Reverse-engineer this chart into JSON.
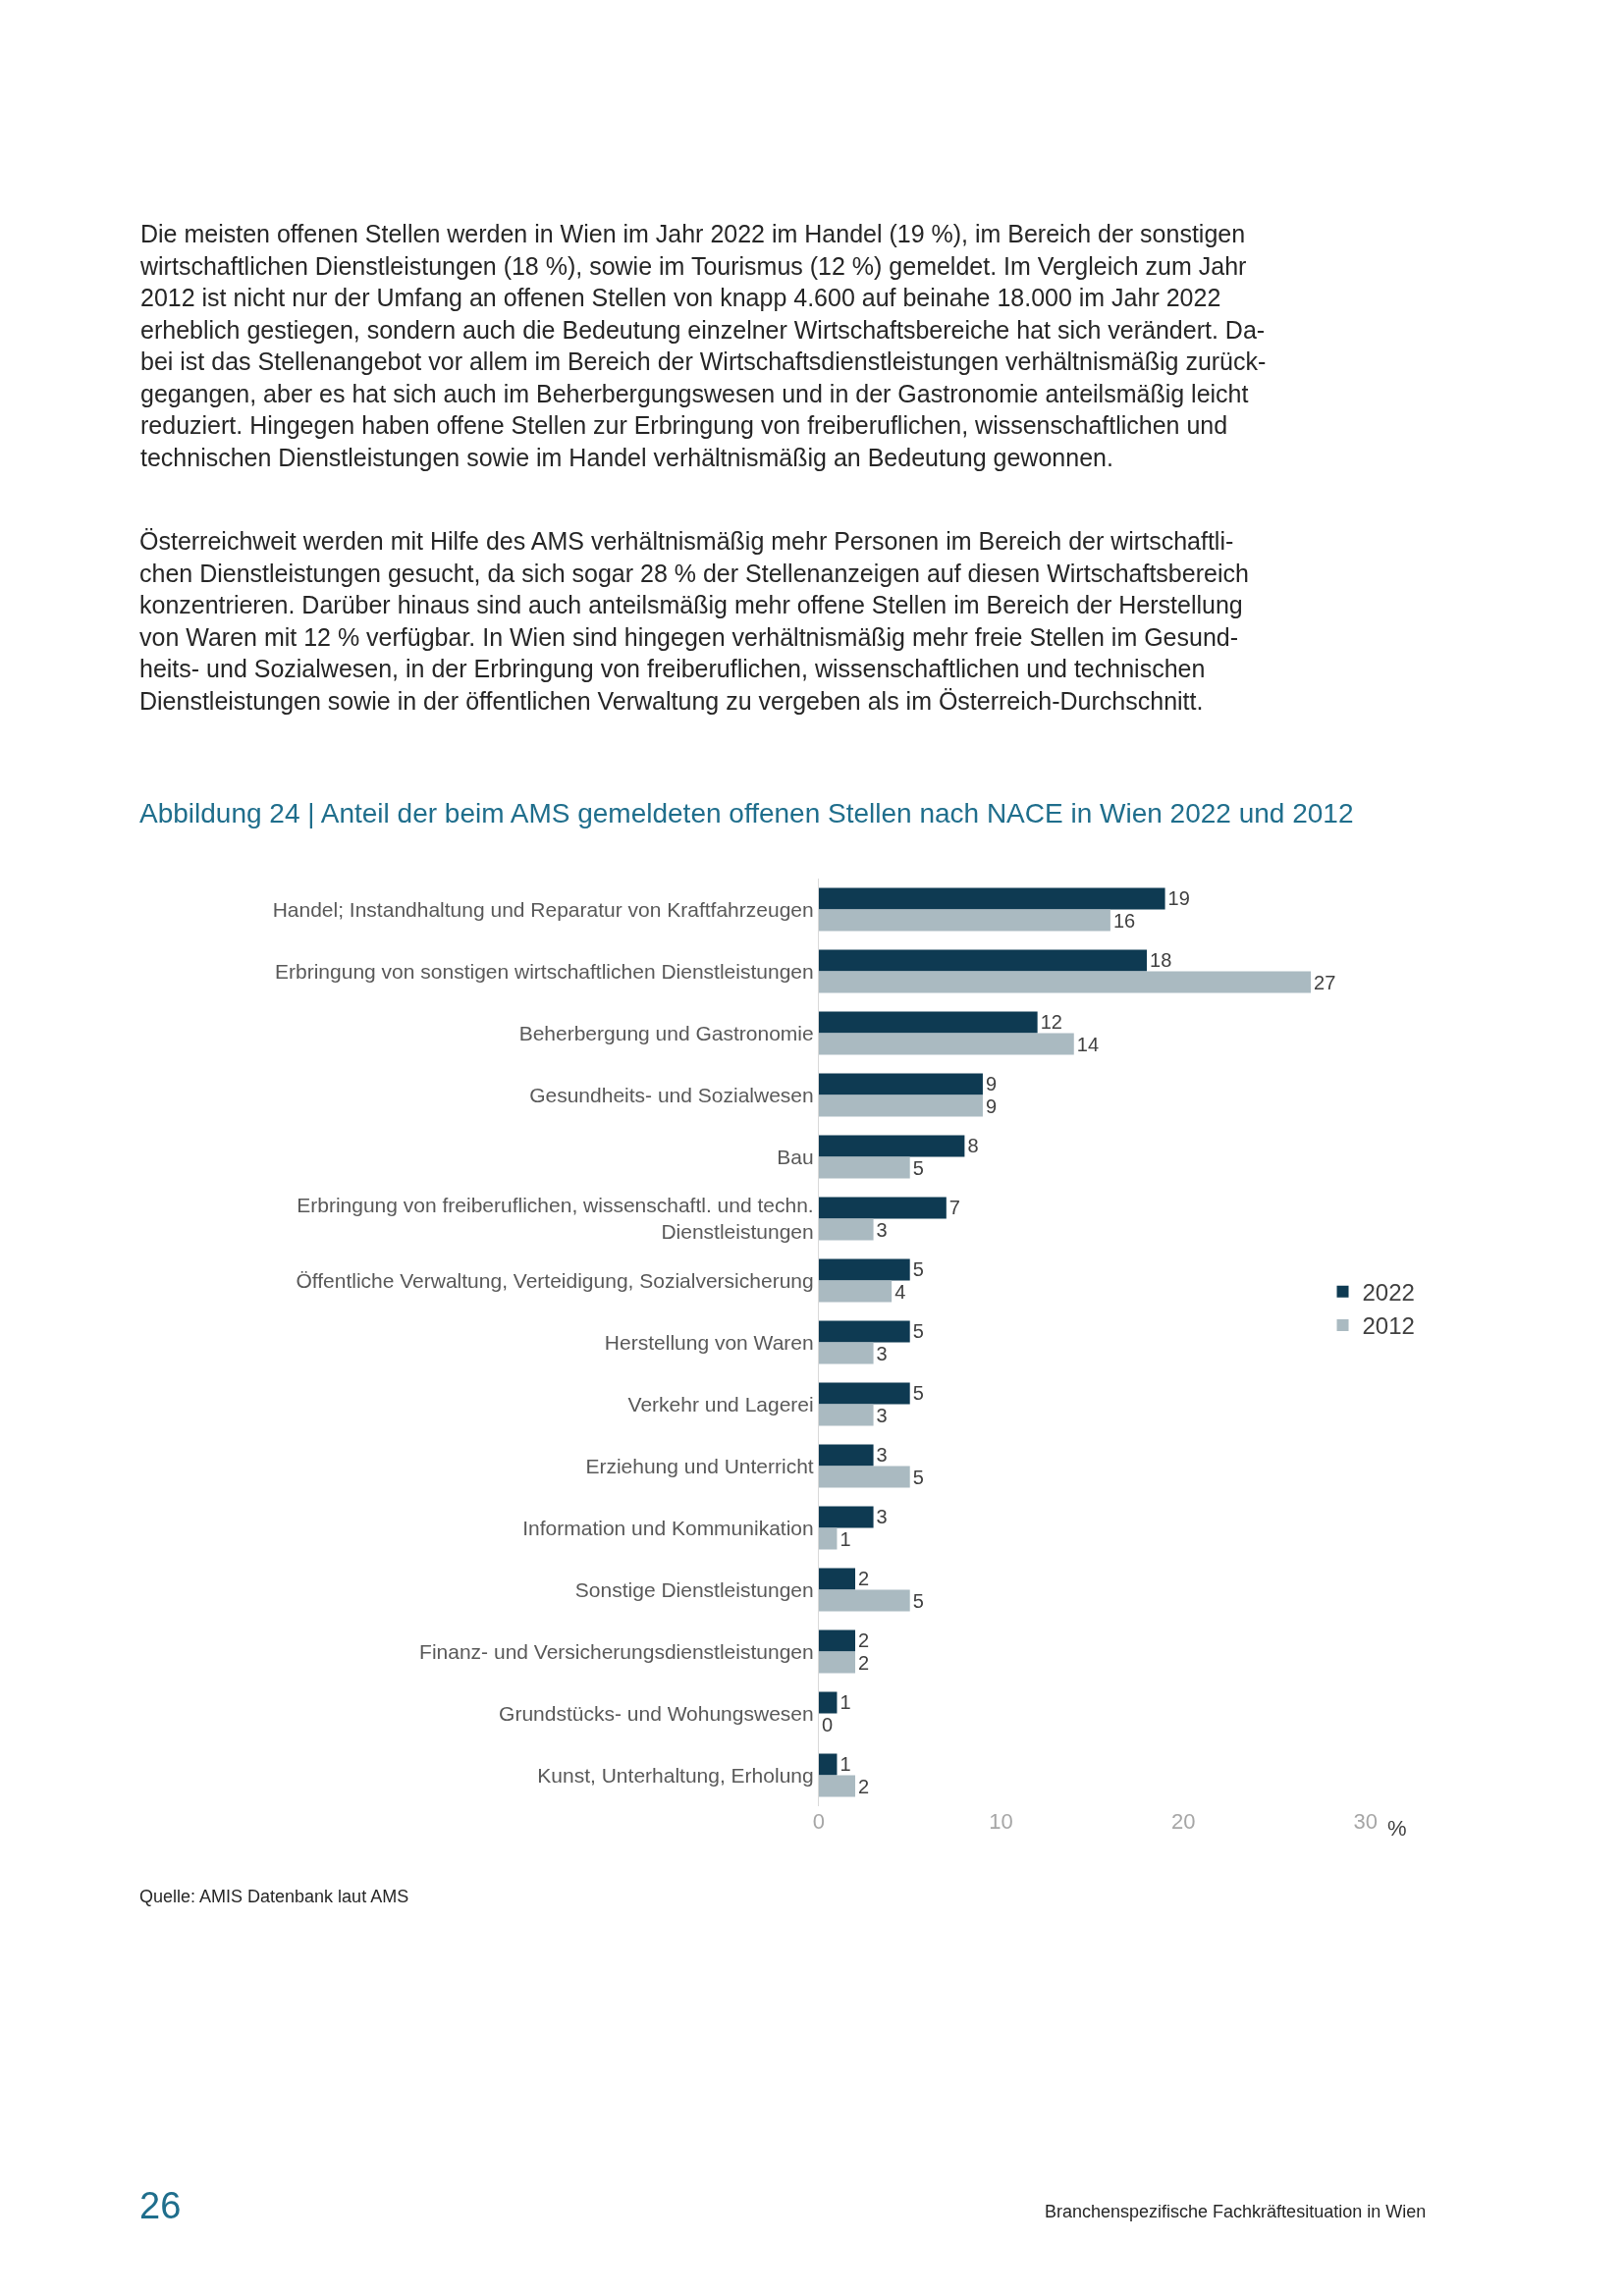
{
  "chart_data": {
    "type": "bar",
    "orientation": "horizontal",
    "title": "Abbildung 24 | Anteil der beim AMS gemeldeten offenen Stellen nach NACE in Wien 2022 und 2012",
    "xlabel": "%",
    "categories": [
      "Handel; Instandhaltung und Reparatur von Kraftfahrzeugen",
      "Erbringung von sonstigen wirtschaftlichen Dienstleistungen",
      "Beherbergung und Gastronomie",
      "Gesundheits- und Sozialwesen",
      "Bau",
      "Erbringung von freiberuflichen, wissenschaftl. und techn.\nDienstleistungen",
      "Öffentliche Verwaltung, Verteidigung, Sozialversicherung",
      "Herstellung von Waren",
      "Verkehr und Lagerei",
      "Erziehung und Unterricht",
      "Information und Kommunikation",
      "Sonstige Dienstleistungen",
      "Finanz- und Versicherungsdienstleistungen",
      "Grundstücks- und Wohungswesen",
      "Kunst, Unterhaltung, Erholung"
    ],
    "series": [
      {
        "name": "2022",
        "color": "#0e3a52",
        "values": [
          19,
          18,
          12,
          9,
          8,
          7,
          5,
          5,
          5,
          3,
          3,
          2,
          2,
          1,
          1
        ]
      },
      {
        "name": "2012",
        "color": "#aabac1",
        "values": [
          16,
          27,
          14,
          9,
          5,
          3,
          4,
          3,
          3,
          5,
          1,
          5,
          2,
          0,
          2
        ]
      }
    ],
    "xlim": [
      0,
      30
    ],
    "xticks": [
      0,
      10,
      20,
      30
    ],
    "data_labels": true,
    "legend": "right",
    "annotations": [
      "Die meisten offenen Stellen werden in Wien im Jahr 2022 im Handel (19 %), im Bereich der sonstigen\nwirtschaftlichen Dienstleistungen (18 %), sowie im Tourismus (12 %) gemeldet. Im Vergleich zum Jahr\n2012 ist nicht nur der Umfang an offenen Stellen von knapp 4.600 auf beinahe 18.000 im Jahr 2022\nerheblich gestiegen, sondern auch die Bedeutung einzelner Wirtschaftsbereiche hat sich verändert. Da-\nbei ist das Stellenangebot vor allem im Bereich der Wirtschaftsdienstleistungen verhältnismäßig zurück-\ngegangen, aber es hat sich auch im Beherbergungswesen und in der Gastronomie anteilsmäßig leicht\nreduziert. Hingegen haben offene Stellen zur Erbringung von freiberuflichen, wissenschaftlichen und\ntechnischen Dienstleistungen sowie im Handel verhältnismäßig an Bedeutung gewonnen.",
      "Österreichweit werden mit Hilfe des AMS verhältnismäßig mehr Personen im Bereich der wirtschaftli-\nchen Dienstleistungen gesucht, da sich sogar 28 % der Stellenanzeigen auf diesen Wirtschaftsbereich\nkonzentrieren. Darüber hinaus sind auch anteilsmäßig mehr offene Stellen im Bereich der Herstellung\nvon Waren mit 12 % verfügbar. In Wien sind hingegen verhältnismäßig mehr freie Stellen im Gesund-\nheits- und Sozialwesen, in der Erbringung von freiberuflichen, wissenschaftlichen und technischen\nDienstleistungen sowie in der öffentlichen Verwaltung zu vergeben als im Österreich-Durchschnitt.",
      "Quelle: AMIS Datenbank laut AMS",
      "26",
      "Branchenspezifische Fachkräftesituation in Wien"
    ]
  }
}
